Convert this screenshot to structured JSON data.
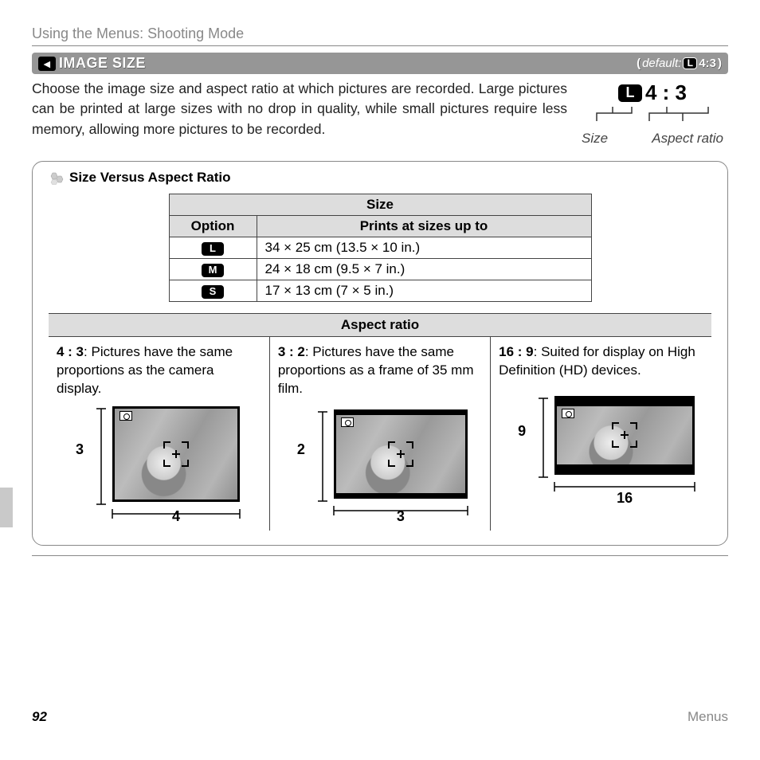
{
  "section_heading": "Using the Menus: Shooting Mode",
  "title_bar": {
    "icon_glyph": "◄",
    "title": "IMAGE SIZE",
    "default_prefix": "(",
    "default_word": "default:",
    "default_badge": "L",
    "default_ratio": "4:3",
    "default_suffix": ")"
  },
  "intro_text": "Choose the image size and aspect ratio at which pictures are recorded.  Large pictures can be printed at large sizes with no drop in quality, while small pictures require less memory, allowing more pictures to be recorded.",
  "side_diagram": {
    "badge": "L",
    "ratio": "4 : 3",
    "label_size": "Size",
    "label_aspect": "Aspect ratio"
  },
  "callout_title": "Size Versus Aspect Ratio",
  "size_table": {
    "main_header": "Size",
    "col_option": "Option",
    "col_prints": "Prints at sizes up to",
    "rows": [
      {
        "badge": "L",
        "value": "34 × 25 cm (13.5 × 10 in.)"
      },
      {
        "badge": "M",
        "value": "24 × 18 cm (9.5 × 7 in.)"
      },
      {
        "badge": "S",
        "value": "17 × 13 cm (7 × 5 in.)"
      }
    ]
  },
  "aspect_table": {
    "header": "Aspect ratio",
    "cells": [
      {
        "ratio": "4 : 3",
        "desc": ": Pictures have the same proportions as the camera display.",
        "v": "3",
        "h": "4",
        "frame_class": "r43",
        "lb": 0
      },
      {
        "ratio": "3 : 2",
        "desc": ": Pictures have the same proportions as a frame of 35 mm film.",
        "v": "2",
        "h": "3",
        "frame_class": "r32",
        "lb": 4
      },
      {
        "ratio": "16 : 9",
        "desc": ": Suited for display on High Definition (HD) devices.",
        "v": "9",
        "h": "16",
        "frame_class": "r169",
        "lb": 10
      }
    ]
  },
  "footer": {
    "page": "92",
    "section": "Menus"
  },
  "colors": {
    "title_bar_bg": "#969696",
    "table_header_bg": "#dddddd",
    "border": "#444444",
    "muted": "#888888"
  }
}
